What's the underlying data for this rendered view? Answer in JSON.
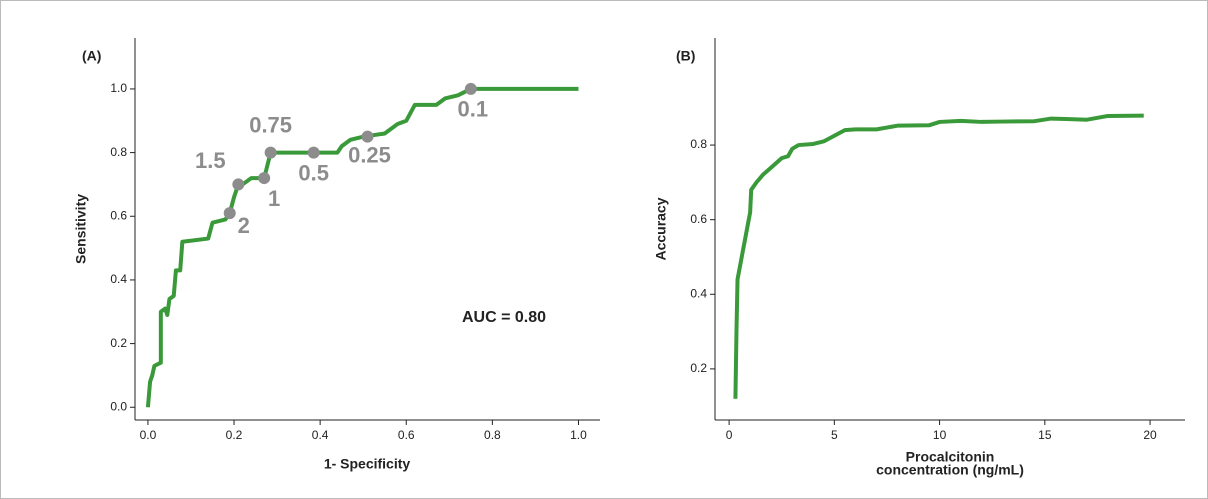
{
  "chart_data": [
    {
      "type": "line",
      "annotations": [
        "(A)",
        "AUC = 0.80"
      ],
      "xlabel": "1- Specificity",
      "ylabel": "Sensitivity",
      "xlim": [
        -0.03,
        1.05
      ],
      "ylim": [
        -0.04,
        1.16
      ],
      "xticks": [
        {
          "value": 0,
          "label": "0.0"
        },
        0.2,
        0.4,
        0.6,
        0.8,
        {
          "value": 1,
          "label": "1.0"
        }
      ],
      "yticks": [
        {
          "value": 0,
          "label": "0.0"
        },
        0.2,
        0.4,
        0.6,
        0.8,
        {
          "value": 1,
          "label": "1.0"
        }
      ],
      "series": [
        {
          "color": "#3a9a3a",
          "x": [
            0.0,
            0.005,
            0.01,
            0.015,
            0.03,
            0.03,
            0.04,
            0.045,
            0.05,
            0.06,
            0.065,
            0.075,
            0.08,
            0.14,
            0.15,
            0.18,
            0.19,
            0.2,
            0.21,
            0.22,
            0.24,
            0.26,
            0.27,
            0.285,
            0.385,
            0.44,
            0.45,
            0.47,
            0.5,
            0.55,
            0.58,
            0.6,
            0.62,
            0.67,
            0.69,
            0.72,
            0.75,
            1.0
          ],
          "values": [
            0.0,
            0.08,
            0.1,
            0.13,
            0.14,
            0.3,
            0.31,
            0.29,
            0.34,
            0.35,
            0.43,
            0.43,
            0.52,
            0.53,
            0.58,
            0.59,
            0.61,
            0.66,
            0.7,
            0.7,
            0.72,
            0.72,
            0.72,
            0.8,
            0.8,
            0.8,
            0.82,
            0.84,
            0.85,
            0.86,
            0.89,
            0.9,
            0.95,
            0.95,
            0.97,
            0.98,
            1.0,
            1.0
          ]
        }
      ],
      "points": {
        "color": "#8c8c8c",
        "x": [
          0.19,
          0.21,
          0.27,
          0.285,
          0.385,
          0.51,
          0.75
        ],
        "y": [
          0.61,
          0.7,
          0.72,
          0.8,
          0.8,
          0.85,
          1.0
        ],
        "labels": [
          "2",
          "1.5",
          "1",
          "0.75",
          "0.5",
          "0.25",
          "0.1"
        ]
      }
    },
    {
      "type": "line",
      "annotations": [
        "(B)"
      ],
      "xlabel": [
        "Procalcitonin",
        "concentration (ng/mL)"
      ],
      "ylabel": "Accuracy",
      "xlim": [
        -0.67,
        21.66
      ],
      "ylim": [
        0.063,
        1.087
      ],
      "xticks": [
        0,
        5,
        10,
        15,
        20
      ],
      "yticks": [
        0.2,
        0.4,
        0.6,
        0.8
      ],
      "series": [
        {
          "color": "#3a9a3a",
          "x": [
            0.3,
            0.35,
            0.4,
            0.6,
            0.8,
            1.0,
            1.05,
            1.3,
            1.6,
            2.0,
            2.5,
            2.8,
            3.0,
            3.3,
            4.0,
            4.5,
            5.0,
            5.5,
            6.0,
            7.0,
            8.0,
            9.5,
            10,
            11,
            12,
            13,
            14.5,
            15.3,
            16,
            17,
            18,
            19.7
          ],
          "values": [
            0.12,
            0.3,
            0.44,
            0.5,
            0.56,
            0.62,
            0.68,
            0.7,
            0.72,
            0.74,
            0.765,
            0.77,
            0.79,
            0.8,
            0.803,
            0.81,
            0.825,
            0.84,
            0.842,
            0.842,
            0.852,
            0.853,
            0.862,
            0.865,
            0.862,
            0.863,
            0.864,
            0.871,
            0.87,
            0.868,
            0.878,
            0.879
          ]
        }
      ]
    }
  ]
}
